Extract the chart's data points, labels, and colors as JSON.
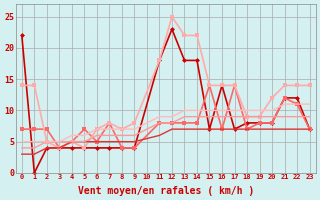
{
  "title": "",
  "xlabel": "Vent moyen/en rafales ( km/h )",
  "background_color": "#d4f0f0",
  "grid_color": "#aaaaaa",
  "x_ticks": [
    0,
    1,
    2,
    3,
    4,
    5,
    6,
    7,
    8,
    9,
    10,
    11,
    12,
    13,
    14,
    15,
    16,
    17,
    18,
    19,
    20,
    21,
    22,
    23
  ],
  "ylim": [
    0,
    27
  ],
  "yticks": [
    0,
    5,
    10,
    15,
    20,
    25
  ],
  "series": [
    {
      "x": [
        0,
        1,
        2,
        3,
        4,
        5,
        6,
        7,
        8,
        9,
        11,
        12,
        13,
        14,
        15,
        16,
        17,
        18,
        19,
        20,
        21,
        22,
        23
      ],
      "y": [
        22,
        0,
        4,
        4,
        4,
        4,
        4,
        4,
        4,
        4,
        18,
        23,
        18,
        18,
        7,
        14,
        7,
        8,
        8,
        8,
        12,
        12,
        7
      ],
      "color": "#cc0000",
      "lw": 1.2,
      "marker": "D",
      "ms": 2.5
    },
    {
      "x": [
        0,
        1,
        2,
        3,
        4,
        5,
        6,
        7,
        8,
        9,
        11,
        12,
        13,
        14,
        15,
        16,
        17,
        18,
        19,
        20,
        21,
        22,
        23
      ],
      "y": [
        7,
        7,
        7,
        4,
        5,
        7,
        5,
        8,
        4,
        4,
        8,
        8,
        8,
        8,
        14,
        7,
        14,
        7,
        8,
        8,
        12,
        11,
        7
      ],
      "color": "#ff6666",
      "lw": 1.2,
      "marker": "s",
      "ms": 2.5
    },
    {
      "x": [
        0,
        1,
        2,
        3,
        4,
        5,
        6,
        7,
        8,
        9,
        11,
        12,
        13,
        14,
        15,
        16,
        17,
        18,
        19,
        20,
        21,
        22,
        23
      ],
      "y": [
        14,
        14,
        5,
        4,
        5,
        4,
        7,
        8,
        7,
        8,
        18,
        25,
        22,
        22,
        14,
        14,
        14,
        9,
        9,
        12,
        14,
        14,
        14
      ],
      "color": "#ffaaaa",
      "lw": 1.2,
      "marker": "s",
      "ms": 2.5
    },
    {
      "x": [
        0,
        1,
        2,
        3,
        4,
        5,
        6,
        7,
        8,
        9,
        11,
        12,
        13,
        14,
        15,
        16,
        17,
        18,
        19,
        20,
        21,
        22,
        23
      ],
      "y": [
        3,
        3,
        4,
        4,
        5,
        5,
        5,
        5,
        5,
        5,
        6,
        7,
        7,
        7,
        7,
        7,
        7,
        7,
        7,
        7,
        7,
        7,
        7
      ],
      "color": "#dd3333",
      "lw": 1.0,
      "marker": null,
      "ms": 0
    },
    {
      "x": [
        0,
        1,
        2,
        3,
        4,
        5,
        6,
        7,
        8,
        9,
        11,
        12,
        13,
        14,
        15,
        16,
        17,
        18,
        19,
        20,
        21,
        22,
        23
      ],
      "y": [
        4,
        4,
        5,
        5,
        5,
        5,
        6,
        6,
        6,
        6,
        8,
        8,
        9,
        9,
        9,
        9,
        9,
        9,
        9,
        9,
        9,
        9,
        9
      ],
      "color": "#ff9999",
      "lw": 1.0,
      "marker": null,
      "ms": 0
    },
    {
      "x": [
        0,
        1,
        2,
        3,
        4,
        5,
        6,
        7,
        8,
        9,
        11,
        12,
        13,
        14,
        15,
        16,
        17,
        18,
        19,
        20,
        21,
        22,
        23
      ],
      "y": [
        5,
        5,
        5,
        5,
        6,
        6,
        7,
        7,
        7,
        7,
        9,
        9,
        10,
        10,
        10,
        10,
        10,
        10,
        10,
        10,
        11,
        11,
        11
      ],
      "color": "#ffbbbb",
      "lw": 1.0,
      "marker": null,
      "ms": 0
    }
  ]
}
